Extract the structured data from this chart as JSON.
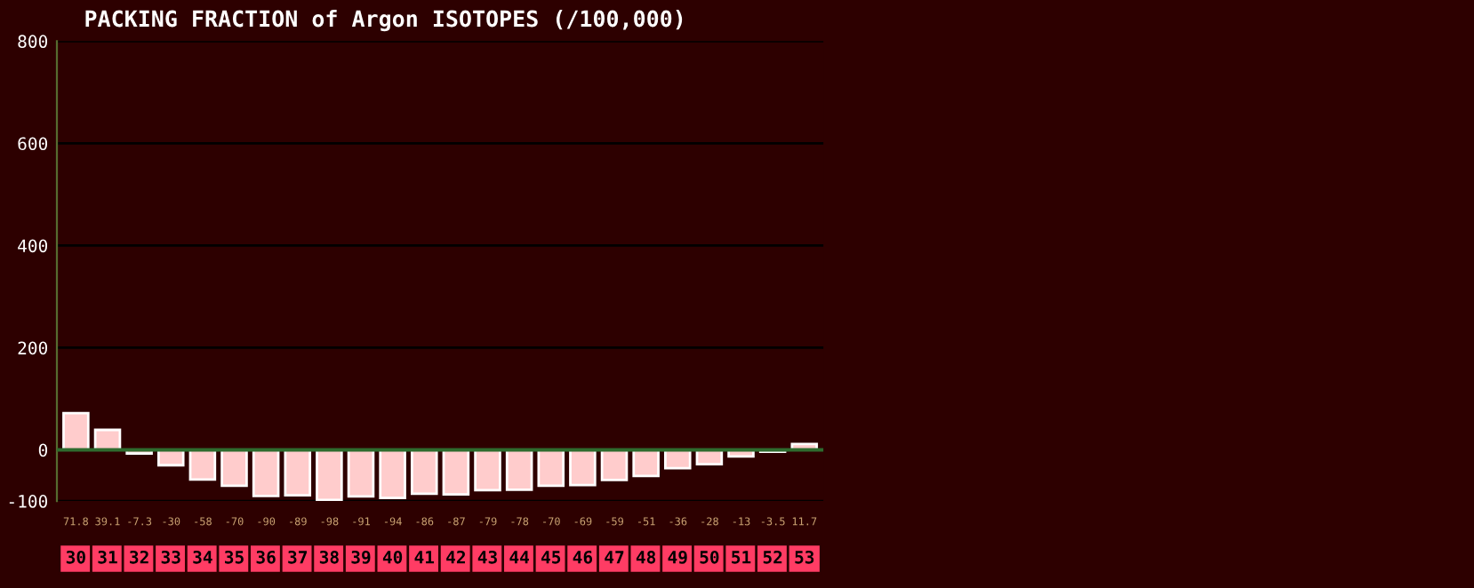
{
  "chart_data": {
    "type": "bar",
    "title": "PACKING FRACTION of Argon ISOTOPES (/100,000)",
    "categories": [
      "30",
      "31",
      "32",
      "33",
      "34",
      "35",
      "36",
      "37",
      "38",
      "39",
      "40",
      "41",
      "42",
      "43",
      "44",
      "45",
      "46",
      "47",
      "48",
      "49",
      "50",
      "51",
      "52",
      "53"
    ],
    "values": [
      71.8,
      39.1,
      -7.3,
      -30,
      -58,
      -70,
      -90,
      -89,
      -98,
      -91,
      -94,
      -86,
      -87,
      -79,
      -78,
      -70,
      -69,
      -59,
      -51,
      -36,
      -28,
      -13,
      -3.5,
      11.7
    ],
    "color": "#ffcccc",
    "data_labels": true,
    "ylim": [
      -100,
      800
    ],
    "yticks": [
      -100,
      0,
      200,
      400,
      600,
      800
    ],
    "grid": "y",
    "ref_lines": [
      {
        "axis": "y",
        "value": 0,
        "color": "#2e6b2e"
      }
    ]
  }
}
